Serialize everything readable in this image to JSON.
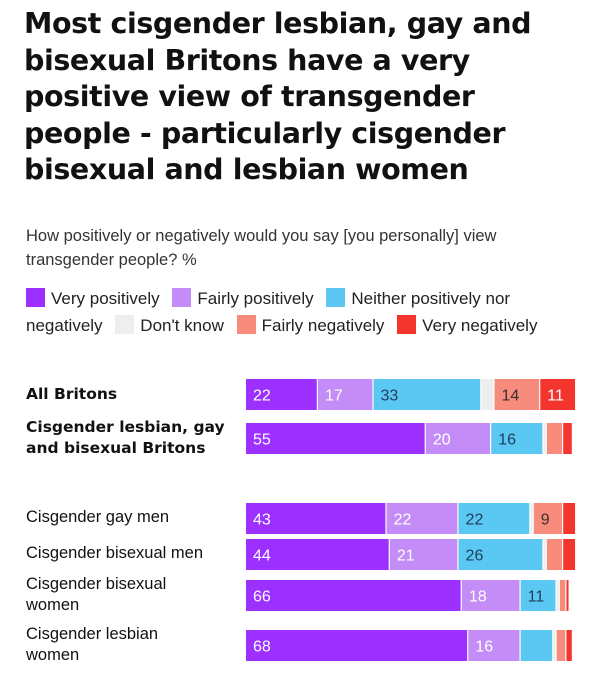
{
  "chart_data": {
    "type": "bar",
    "orientation": "horizontal",
    "stacked": true,
    "title": "Most cisgender lesbian, gay and bisexual Britons have a very positive view of transgender people - particularly cisgender bisexual and lesbian women",
    "subtitle": "How positively or negatively would you say [you personally] view transgender people? %",
    "xlim": [
      0,
      100
    ],
    "grid": false,
    "legend_position": "top",
    "categories": [
      "All Britons",
      "Cisgender lesbian, gay and bisexual Britons",
      "Cisgender gay men",
      "Cisgender bisexual men",
      "Cisgender bisexual women",
      "Cisgender lesbian women"
    ],
    "bold_categories": [
      true,
      true,
      false,
      false,
      false,
      false
    ],
    "series": [
      {
        "name": "Very positively",
        "color": "#9b30ff",
        "label_color": "#ffffff",
        "values": [
          22,
          55,
          43,
          44,
          66,
          68
        ]
      },
      {
        "name": "Fairly positively",
        "color": "#c38cf7",
        "label_color": "#ffffff",
        "values": [
          17,
          20,
          22,
          21,
          18,
          16
        ]
      },
      {
        "name": "Neither positively nor negatively",
        "color": "#5ac8f2",
        "label_color": "#1d3d5c",
        "values": [
          33,
          16,
          22,
          26,
          11,
          10
        ]
      },
      {
        "name": "Don't know",
        "color": "#eeeeee",
        "label_color": "#333333",
        "values": [
          4,
          1,
          1,
          1,
          1,
          1
        ]
      },
      {
        "name": "Fairly negatively",
        "color": "#f88c7c",
        "label_color": "#333333",
        "values": [
          14,
          5,
          9,
          5,
          2,
          3
        ]
      },
      {
        "name": "Very negatively",
        "color": "#f4352e",
        "label_color": "#ffffff",
        "values": [
          11,
          3,
          4,
          4,
          1,
          2
        ]
      }
    ],
    "data_labels": [
      [
        "22",
        "17",
        "33",
        "",
        "14",
        "11"
      ],
      [
        "55",
        "20",
        "16",
        "",
        "",
        ""
      ],
      [
        "43",
        "22",
        "22",
        "",
        "9",
        ""
      ],
      [
        "44",
        "21",
        "26",
        "",
        "",
        ""
      ],
      [
        "66",
        "18",
        "11",
        "",
        "",
        ""
      ],
      [
        "68",
        "16",
        "",
        "",
        "",
        ""
      ]
    ]
  }
}
